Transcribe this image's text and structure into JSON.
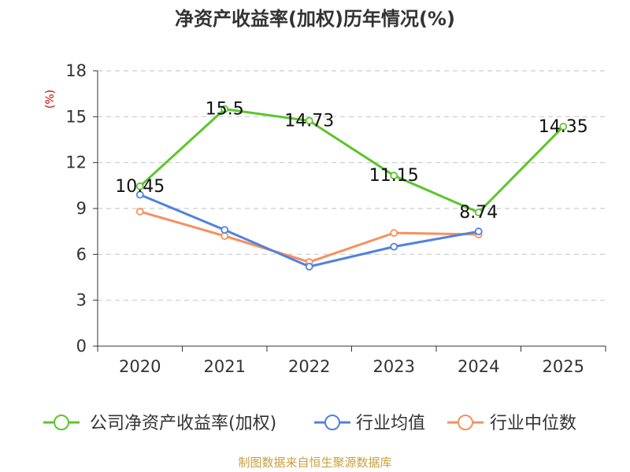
{
  "chart_data": {
    "type": "line",
    "title": "净资产收益率(加权)历年情况(%)",
    "ylabel": "(%)",
    "ylim": [
      0,
      18
    ],
    "yticks": [
      0,
      3,
      6,
      9,
      12,
      15,
      18
    ],
    "categories": [
      "2020",
      "2021",
      "2022",
      "2023",
      "2024",
      "2025"
    ],
    "grid": true,
    "legend_position": "bottom",
    "series": [
      {
        "name": "公司净资产收益率(加权)",
        "color": "#5cc52c",
        "values": [
          10.45,
          15.5,
          14.73,
          11.15,
          8.74,
          14.35
        ],
        "labels": [
          "10.45",
          "15.5",
          "14.73",
          "11.15",
          "8.74",
          "14.35"
        ]
      },
      {
        "name": "行业均值",
        "color": "#5281de",
        "values": [
          9.9,
          7.6,
          5.2,
          6.5,
          7.5,
          null
        ]
      },
      {
        "name": "行业中位数",
        "color": "#f7905f",
        "values": [
          8.8,
          7.2,
          5.5,
          7.4,
          7.3,
          null
        ]
      }
    ]
  },
  "footer": {
    "source": "制图数据来自恒生聚源数据库"
  }
}
